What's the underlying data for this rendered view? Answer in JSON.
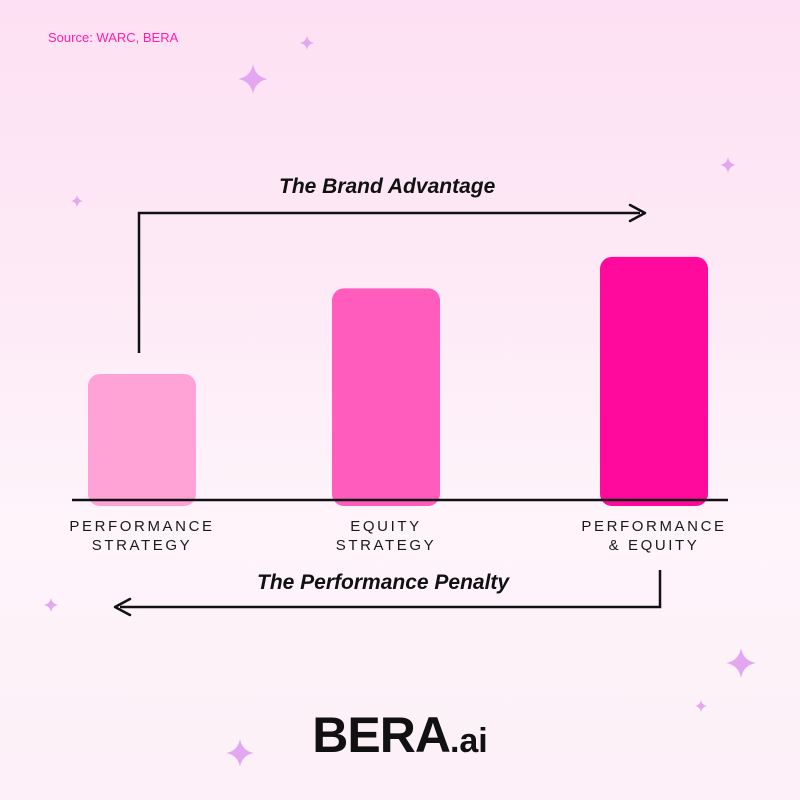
{
  "source": "Source: WARC, BERA",
  "annotations": {
    "top": "The Brand Advantage",
    "bottom": "The Performance Penalty"
  },
  "logo": {
    "main": "BERA",
    "suffix": ".ai"
  },
  "colors": {
    "bar_1": "#ffa3d7",
    "bar_2": "#ff5cbd",
    "bar_3": "#ff0a9d",
    "sparkle": "#e3a6f0",
    "source_text": "#ff1fa8"
  },
  "chart_data": {
    "type": "bar",
    "categories": [
      [
        "PERFORMANCE",
        "STRATEGY"
      ],
      [
        "EQUITY",
        "STRATEGY"
      ],
      [
        "PERFORMANCE",
        "& EQUITY"
      ]
    ],
    "values": [
      1.0,
      1.68,
      1.93
    ],
    "value_note_hidden": true,
    "ylim": [
      0,
      2.0
    ],
    "grid": false,
    "legend": "none"
  }
}
